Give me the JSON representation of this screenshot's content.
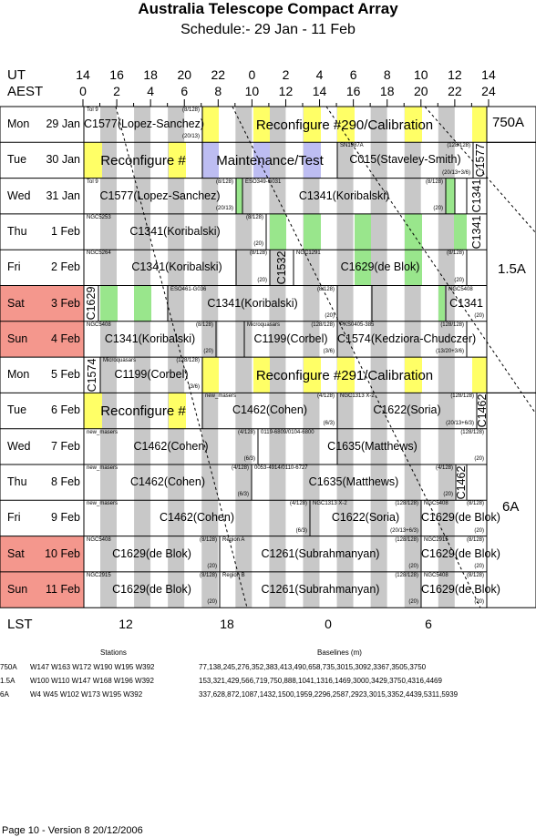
{
  "title": "Australia Telescope Compact Array",
  "subtitle": "Schedule:- 29 Jan - 11 Feb",
  "axis": {
    "ut_label": "UT",
    "aest_label": "AEST",
    "lst_label": "LST",
    "ut_ticks": [
      "14",
      "16",
      "18",
      "20",
      "22",
      "0",
      "2",
      "4",
      "6",
      "8",
      "10",
      "12",
      "14"
    ],
    "aest_ticks": [
      "0",
      "2",
      "4",
      "6",
      "8",
      "10",
      "12",
      "14",
      "16",
      "18",
      "20",
      "22",
      "24"
    ],
    "lst_ticks": [
      "12",
      "18",
      "0",
      "6"
    ]
  },
  "days": [
    {
      "wd": "Mon",
      "d": "29 Jan",
      "weekend": false
    },
    {
      "wd": "Tue",
      "d": "30 Jan",
      "weekend": false
    },
    {
      "wd": "Wed",
      "d": "31 Jan",
      "weekend": false
    },
    {
      "wd": "Thu",
      "d": "1 Feb",
      "weekend": false
    },
    {
      "wd": "Fri",
      "d": "2 Feb",
      "weekend": false
    },
    {
      "wd": "Sat",
      "d": "3 Feb",
      "weekend": true
    },
    {
      "wd": "Sun",
      "d": "4 Feb",
      "weekend": true
    },
    {
      "wd": "Mon",
      "d": "5 Feb",
      "weekend": false
    },
    {
      "wd": "Tue",
      "d": "6 Feb",
      "weekend": false
    },
    {
      "wd": "Wed",
      "d": "7 Feb",
      "weekend": false
    },
    {
      "wd": "Thu",
      "d": "8 Feb",
      "weekend": false
    },
    {
      "wd": "Fri",
      "d": "9 Feb",
      "weekend": false
    },
    {
      "wd": "Sat",
      "d": "10 Feb",
      "weekend": true
    },
    {
      "wd": "Sun",
      "d": "11 Feb",
      "weekend": true
    }
  ],
  "configs": [
    "750A",
    "1.5A",
    "6A"
  ],
  "blocks": [
    {
      "r": 0,
      "t": "C1577(Lopez-Sanchez)",
      "tl": "Tol 9",
      "tr": "(8/128)",
      "br": "(20/13)"
    },
    {
      "r": 0,
      "t": "Reconfigure #290/Calibration"
    },
    {
      "r": 1,
      "t": "Reconfigure #"
    },
    {
      "r": 1,
      "t": "Maintenance/Test"
    },
    {
      "r": 1,
      "t": "C015(Staveley-Smith)",
      "tl": "SN1987A",
      "tr": "(128/128)",
      "br": "(20/13+3/6)"
    },
    {
      "r": 1,
      "t": "C1577"
    },
    {
      "r": 2,
      "t": "C1577(Lopez-Sanchez)",
      "tl": "Tol 9",
      "tr": "(8/128)",
      "br": "(20/13)"
    },
    {
      "r": 2,
      "t": "C1341(Koribalski)",
      "tl": "ESO349-G031",
      "tr": "(8/128)",
      "br": "(20)"
    },
    {
      "r": 2,
      "t": "C1341"
    },
    {
      "r": 3,
      "t": "C1341(Koribalski)",
      "tl": "NGC5253",
      "tr": "(8/128)",
      "br": "(20)"
    },
    {
      "r": 3,
      "t": "C1341"
    },
    {
      "r": 4,
      "t": "C1341(Koribalski)",
      "tl": "NGC5264",
      "tr": "(8/128)",
      "br": "(20)"
    },
    {
      "r": 4,
      "t": "C1532"
    },
    {
      "r": 4,
      "t": "C1629(de Blok)",
      "tl": "NGC1291",
      "tr": "(8/128)",
      "br": "(20)"
    },
    {
      "r": 5,
      "t": "C1629"
    },
    {
      "r": 5,
      "t": "C1341(Koribalski)",
      "tl": "ESO461-G036",
      "tr": "(8/128)",
      "br": "(20)"
    },
    {
      "r": 5,
      "t": "C1341",
      "tl": "NGC5408",
      "br": "(20)"
    },
    {
      "r": 6,
      "t": "C1341(Koribalski)",
      "tl": "NGC5408",
      "tr": "(8/128)",
      "br": "(20)"
    },
    {
      "r": 6,
      "t": "C1199(Corbel)",
      "tl": "Microquasars",
      "tr": "(128/128)",
      "br": "(3/6)"
    },
    {
      "r": 6,
      "t": "C1574(Kedziora-Chudczer)",
      "tl": "PKS0405-385",
      "tr": "(128/128)",
      "br": "(13/20+3/6)"
    },
    {
      "r": 7,
      "t": "C1574"
    },
    {
      "r": 7,
      "t": "C1199(Corbel)",
      "tl": "Microquasars",
      "tr": "(128/128)",
      "br": "(3/6)"
    },
    {
      "r": 7,
      "t": "Reconfigure #291/Calibration"
    },
    {
      "r": 8,
      "t": "Reconfigure #"
    },
    {
      "r": 8,
      "t": "C1462(Cohen)",
      "tl": "new_masers",
      "tr": "(4/128)",
      "br": "(6/3)"
    },
    {
      "r": 8,
      "t": "C1622(Soria)",
      "tl": "NGC1313 X-2",
      "tr": "(128/128)",
      "br": "(20/13+6/3)"
    },
    {
      "r": 8,
      "t": "C1462"
    },
    {
      "r": 9,
      "t": "C1462(Cohen)",
      "tl": "new_masers",
      "tr": "(4/128)",
      "br": "(6/3)"
    },
    {
      "r": 9,
      "t": "C1635(Matthews)",
      "tl": "0119-6809/0104-6800",
      "tr": "(128/128)",
      "br": "(20)"
    },
    {
      "r": 10,
      "t": "C1462(Cohen)",
      "tl": "new_masers",
      "tr": "(4/128)",
      "br": "(6/3)"
    },
    {
      "r": 10,
      "t": "C1635(Matthews)",
      "tl": "0053-4914/0110-6727",
      "tr": "(4/128)",
      "br": "(20)"
    },
    {
      "r": 10,
      "t": "C1462"
    },
    {
      "r": 11,
      "t": "C1462(Cohen)",
      "tl": "new_masers",
      "tr": "(4/128)",
      "br": "(6/3)"
    },
    {
      "r": 11,
      "t": "C1622(Soria)",
      "tl": "NGC1313 X-2",
      "tr": "(128/128)",
      "br": "(20/13+6/3)"
    },
    {
      "r": 11,
      "t": "C1629(de Blok)",
      "tl": "NGC5408",
      "tr": "(8/128)",
      "br": "(20)"
    },
    {
      "r": 12,
      "t": "C1629(de Blok)",
      "tl": "NGC5408",
      "tr": "(8/128)",
      "br": "(20)"
    },
    {
      "r": 12,
      "t": "C1261(Subrahmanyan)",
      "tl": "Region A",
      "tr": "(128/128)",
      "br": "(20)"
    },
    {
      "r": 12,
      "t": "C1629(de Blok)",
      "tl": "NGC2915",
      "tr": "(8/128)",
      "br": "(20)"
    },
    {
      "r": 13,
      "t": "C1629(de Blok)",
      "tl": "NGC2915",
      "tr": "(8/128)",
      "br": "(20)"
    },
    {
      "r": 13,
      "t": "C1261(Subrahmanyan)",
      "tl": "Region B",
      "tr": "(128/128)",
      "br": "(20)"
    },
    {
      "r": 13,
      "t": "C1629(de Blok)",
      "tl": "NGC5408",
      "tr": "(8/128)",
      "br": "(20)"
    }
  ],
  "stations_header": "Stations",
  "baselines_header": "Baselines (m)",
  "array_table": [
    {
      "cfg": "750A",
      "stations": "W147 W163 W172 W190 W195 W392",
      "baselines": "77,138,245,276,352,383,413,490,658,735,3015,3092,3367,3505,3750"
    },
    {
      "cfg": "1.5A",
      "stations": "W100 W110 W147 W168 W196 W392",
      "baselines": "153,321,429,566,719,750,888,1041,1316,1469,3000,3429,3750,4316,4469"
    },
    {
      "cfg": "6A",
      "stations": "W4 W45 W102 W173 W195 W392",
      "baselines": "337,628,872,1087,1432,1500,1959,2296,2587,2923,3015,3352,4439,5311,5939"
    }
  ],
  "footer": "Page 10 - Version 8  20/12/2006",
  "colors": {
    "weekend": "#f4978d",
    "reconfig": "#ffff66",
    "maint": "#bdbdf2",
    "green": "#99e68c",
    "stripe": "#c8c8c8"
  }
}
